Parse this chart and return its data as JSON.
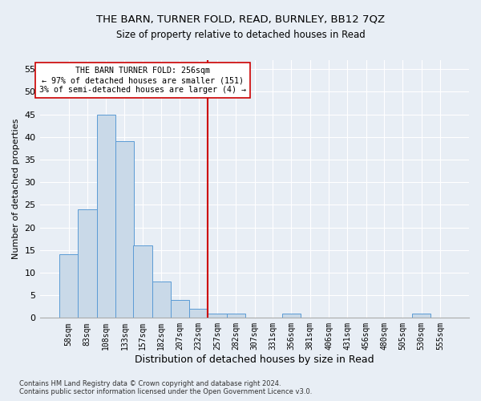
{
  "title": "THE BARN, TURNER FOLD, READ, BURNLEY, BB12 7QZ",
  "subtitle": "Size of property relative to detached houses in Read",
  "xlabel": "Distribution of detached houses by size in Read",
  "ylabel": "Number of detached properties",
  "footer_line1": "Contains HM Land Registry data © Crown copyright and database right 2024.",
  "footer_line2": "Contains public sector information licensed under the Open Government Licence v3.0.",
  "annotation_title": "THE BARN TURNER FOLD: 256sqm",
  "annotation_line1": "← 97% of detached houses are smaller (151)",
  "annotation_line2": "3% of semi-detached houses are larger (4) →",
  "bar_color": "#c9d9e8",
  "bar_edge_color": "#5b9bd5",
  "marker_line_color": "#cc0000",
  "categories": [
    58,
    83,
    108,
    133,
    157,
    182,
    207,
    232,
    257,
    282,
    307,
    331,
    356,
    381,
    406,
    431,
    456,
    480,
    505,
    530,
    555
  ],
  "values": [
    14,
    24,
    45,
    39,
    16,
    8,
    4,
    2,
    1,
    1,
    0,
    0,
    1,
    0,
    0,
    0,
    0,
    0,
    0,
    1,
    0
  ],
  "ylim": [
    0,
    57
  ],
  "yticks": [
    0,
    5,
    10,
    15,
    20,
    25,
    30,
    35,
    40,
    45,
    50,
    55
  ],
  "background_color": "#e8eef5",
  "plot_background": "#e8eef5",
  "grid_color": "#ffffff",
  "bin_width": 25
}
